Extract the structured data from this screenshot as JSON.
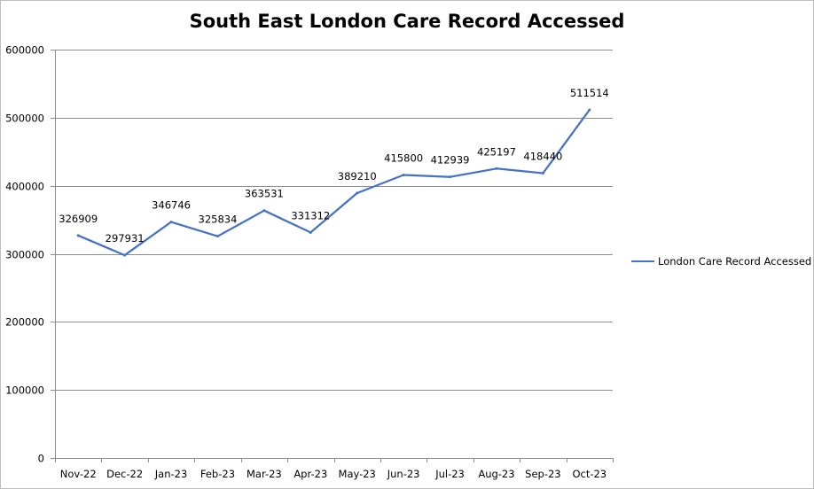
{
  "chart_data": {
    "type": "line",
    "title": "South East London Care Record Accessed",
    "categories": [
      "Nov-22",
      "Dec-22",
      "Jan-23",
      "Feb-23",
      "Mar-23",
      "Apr-23",
      "May-23",
      "Jun-23",
      "Jul-23",
      "Aug-23",
      "Sep-23",
      "Oct-23"
    ],
    "series": [
      {
        "name": "London Care Record Accessed",
        "values": [
          326909,
          297931,
          346746,
          325834,
          363531,
          331312,
          389210,
          415800,
          412939,
          425197,
          418440,
          511514
        ]
      }
    ],
    "xlabel": "",
    "ylabel": "",
    "ylim": [
      0,
      600000
    ],
    "yticks": [
      "0",
      "100000",
      "200000",
      "300000",
      "400000",
      "500000",
      "600000"
    ],
    "data_labels": true,
    "grid": true,
    "legend_position": "right",
    "colors": {
      "series": "#4472c4",
      "grid": "#8c8c8c",
      "axis": "#8c8c8c"
    }
  }
}
